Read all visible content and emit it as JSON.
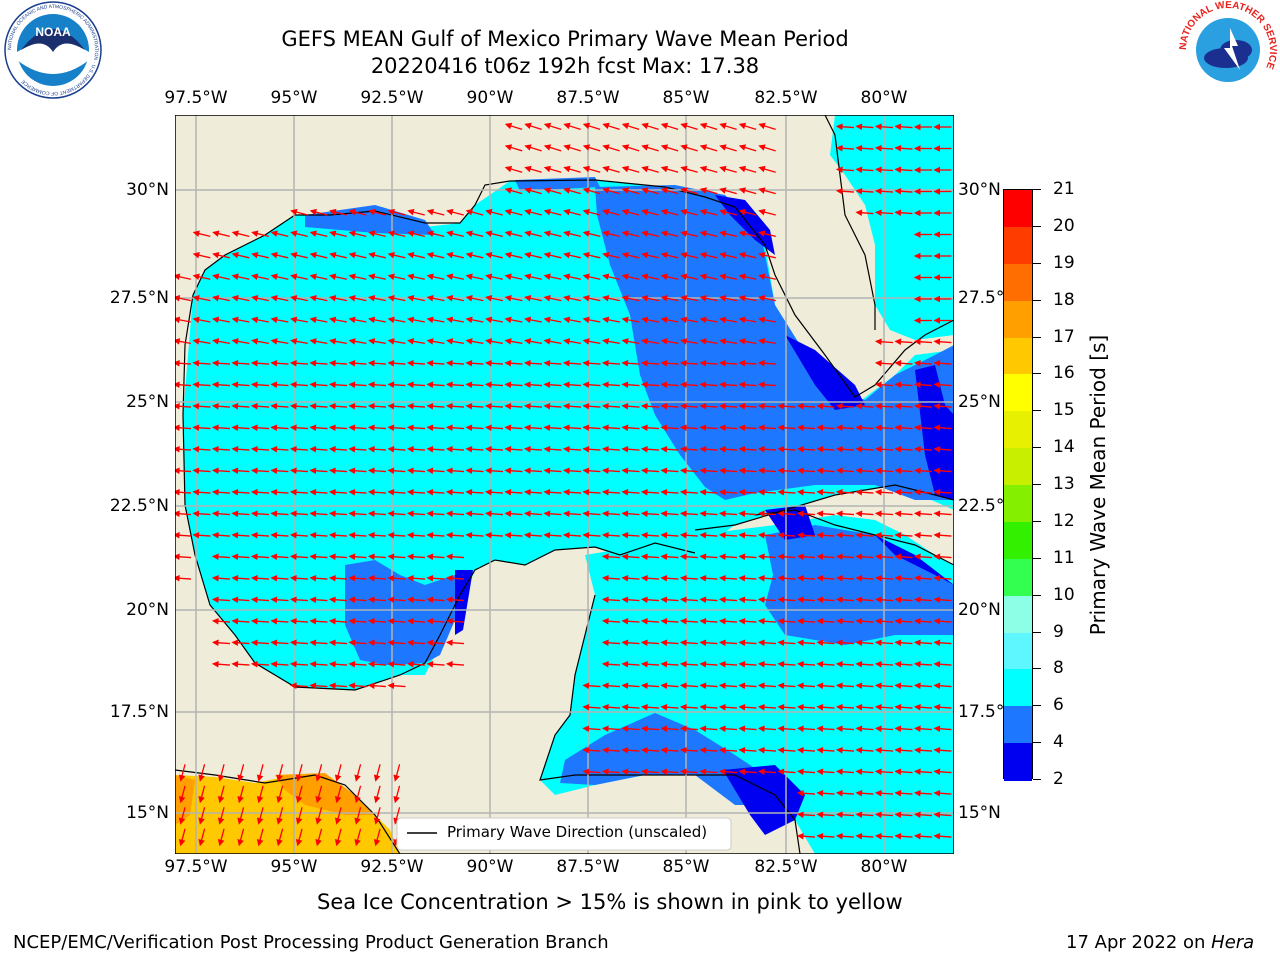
{
  "title_line1": "GEFS MEAN Gulf of Mexico Primary Wave Mean Period",
  "title_line2": "20220416 t06z 192h fcst   Max: 17.38",
  "lon_labels": [
    "97.5°W",
    "95°W",
    "92.5°W",
    "90°W",
    "87.5°W",
    "85°W",
    "82.5°W",
    "80°W"
  ],
  "lat_labels": [
    "30°N",
    "27.5°N",
    "25°N",
    "22.5°N",
    "20°N",
    "17.5°N",
    "15°N"
  ],
  "colorbar": {
    "title": "Primary Wave Mean Period [s]",
    "ticks": [
      "2",
      "4",
      "6",
      "8",
      "9",
      "10",
      "11",
      "12",
      "13",
      "14",
      "15",
      "16",
      "17",
      "18",
      "19",
      "20",
      "21"
    ],
    "colors": [
      "#0000f0",
      "#1e78ff",
      "#00ffff",
      "#5ff7ff",
      "#8cffe6",
      "#32ff50",
      "#32f000",
      "#84f000",
      "#c8ee00",
      "#e6f000",
      "#ffff00",
      "#ffc800",
      "#ffa000",
      "#ff6e00",
      "#ff3c00",
      "#ff0000"
    ]
  },
  "legend_label": "Primary Wave Direction (unscaled)",
  "sea_ice_note": "Sea Ice Concentration > 15% is shown in pink to yellow",
  "footer_left": "NCEP/EMC/Verification Post Processing Product Generation Branch",
  "footer_date": "17 Apr 2022 on ",
  "footer_machine": "Hera",
  "logo_left_text": "NOAA",
  "logo_left_ring": "NATIONAL OCEANIC AND ATMOSPHERIC ADMINISTRATION · U.S. DEPARTMENT OF COMMERCE",
  "logo_right_ring": "NATIONAL WEATHER SERVICE",
  "colors": {
    "land": "#efedd9",
    "grid": "#b3b3b3",
    "arrow": "#ff0000"
  }
}
